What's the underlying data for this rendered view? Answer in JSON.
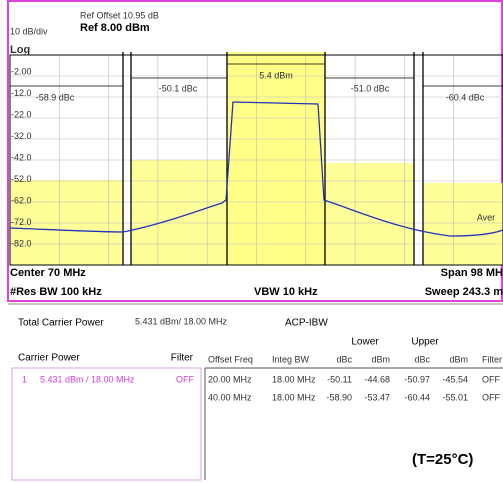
{
  "header": {
    "ref_offset": "Ref Offset 10.95 dB",
    "scale": "10 dB/div",
    "ref_level": "Ref 8.00 dBm",
    "log": "Log"
  },
  "y_labels": [
    "-2.00",
    "-12.0",
    "-22.0",
    "-32.0",
    "-42.0",
    "-52.0",
    "-62.0",
    "-72.0",
    "-82.0"
  ],
  "annotations": [
    "-58.9 dBc",
    "-50.1 dBc",
    "5.4 dBm",
    "-51.0 dBc",
    "-60.4 dBc",
    "Aver"
  ],
  "footer": {
    "center": "Center  70 MHz",
    "span": "Span 98 MH",
    "res_bw": "#Res BW  100 kHz",
    "vbw": "VBW  10 kHz",
    "sweep": "Sweep  243.3 m"
  },
  "summary": {
    "total_label": "Total Carrier Power",
    "total_value": "5.431 dBm/ 18.00 MHz",
    "mode": "ACP-IBW"
  },
  "carrier": {
    "label": "Carrier Power",
    "filter": "Filter",
    "row": [
      "1",
      "5.431 dBm /  18.00 MHz",
      "OFF"
    ]
  },
  "table": {
    "groups": [
      "Lower",
      "Upper"
    ],
    "headers": [
      "Offset Freq",
      "Integ BW",
      "dBc",
      "dBm",
      "dBc",
      "dBm",
      "Filter"
    ],
    "rows": [
      [
        "20.00 MHz",
        "18.00 MHz",
        "-50.11",
        "-44.68",
        "-50.97",
        "-45.54",
        "OFF"
      ],
      [
        "40.00 MHz",
        "18.00 MHz",
        "-58.90",
        "-53.47",
        "-60.44",
        "-55.01",
        "OFF"
      ]
    ]
  },
  "note": "(T=25°C)"
}
